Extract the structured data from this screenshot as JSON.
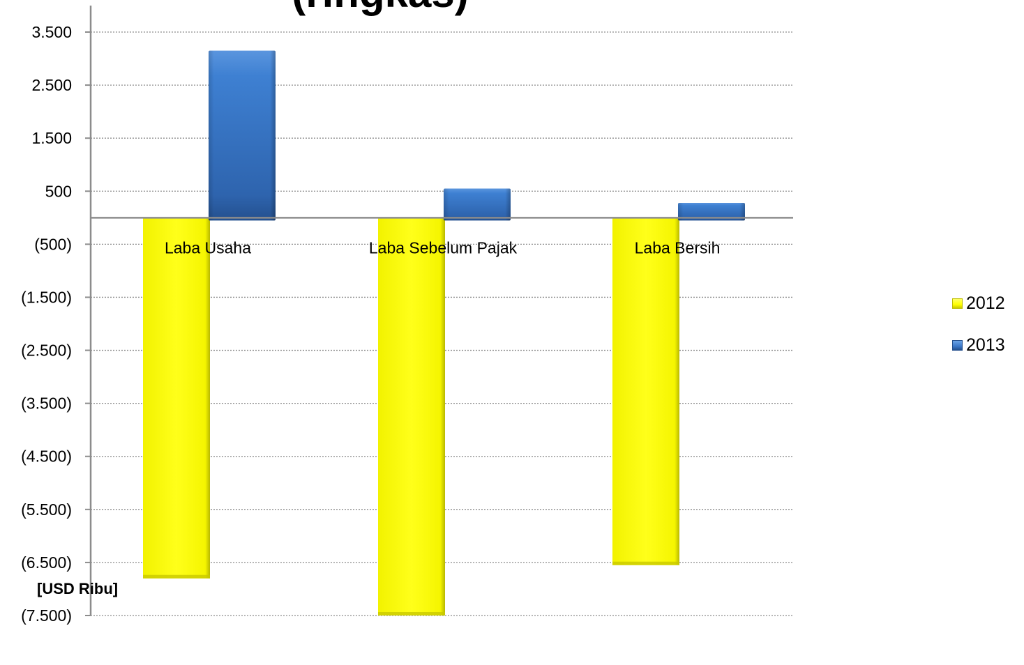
{
  "title": "(ringkas)",
  "unit_label": "[USD Ribu]",
  "colors": {
    "series_2012": "#FFFF00",
    "series_2013": "#3B78C8",
    "grid": "#8C8C8C",
    "axis": "#8C8C8C"
  },
  "chart_data": {
    "type": "bar",
    "categories": [
      "Laba Usaha",
      "Laba Sebelum Pajak",
      "Laba Bersih"
    ],
    "series": [
      {
        "name": "2012",
        "values": [
          -6800,
          -7500,
          -6550
        ]
      },
      {
        "name": "2013",
        "values": [
          3150,
          550,
          280
        ]
      }
    ],
    "ylim": [
      -7500,
      3500
    ],
    "yticks": [
      3500,
      2500,
      1500,
      500,
      -500,
      -1500,
      -2500,
      -3500,
      -4500,
      -5500,
      -6500,
      -7500
    ],
    "ytick_labels": [
      "3.500",
      "2.500",
      "1.500",
      "500",
      "(500)",
      "(1.500)",
      "(2.500)",
      "(3.500)",
      "(4.500)",
      "(5.500)",
      "(6.500)",
      "(7.500)"
    ],
    "grid": true,
    "legend_position": "right",
    "xlabel": "",
    "ylabel": ""
  }
}
